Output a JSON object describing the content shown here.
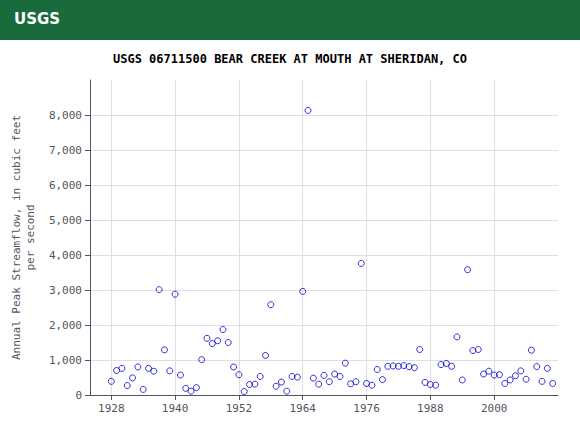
{
  "chart_data": {
    "type": "scatter",
    "title": "USGS 06711500 BEAR CREEK AT MOUTH AT SHERIDAN, CO",
    "annotations": [
      "USGS"
    ],
    "ylabel": "Annual Peak Streamflow, in cubic feet\nper second",
    "marker": "open_circle",
    "color": "#0000cc",
    "grid": true,
    "xlim": [
      1924,
      2012
    ],
    "xticks": [
      1928,
      1940,
      1952,
      1964,
      1976,
      1988,
      2000
    ],
    "ylim": [
      0,
      9000
    ],
    "yticks": [
      0,
      {
        "value": 1000,
        "label": "1,000"
      },
      {
        "value": 2000,
        "label": "2,000"
      },
      {
        "value": 3000,
        "label": "3,000"
      },
      {
        "value": 4000,
        "label": "4,000"
      },
      {
        "value": 5000,
        "label": "5,000"
      },
      {
        "value": 6000,
        "label": "6,000"
      },
      {
        "value": 7000,
        "label": "7,000"
      },
      {
        "value": 8000,
        "label": "8,000"
      }
    ],
    "x": [
      1928,
      1929,
      1930,
      1931,
      1932,
      1933,
      1934,
      1935,
      1936,
      1937,
      1938,
      1939,
      1940,
      1941,
      1942,
      1943,
      1944,
      1945,
      1946,
      1947,
      1948,
      1949,
      1950,
      1951,
      1952,
      1953,
      1954,
      1955,
      1956,
      1957,
      1958,
      1959,
      1960,
      1961,
      1962,
      1963,
      1964,
      1965,
      1966,
      1967,
      1968,
      1969,
      1970,
      1971,
      1972,
      1973,
      1974,
      1975,
      1976,
      1977,
      1978,
      1979,
      1980,
      1981,
      1982,
      1983,
      1984,
      1985,
      1986,
      1987,
      1988,
      1989,
      1990,
      1991,
      1992,
      1993,
      1994,
      1995,
      1996,
      1997,
      1998,
      1999,
      2000,
      2001,
      2002,
      2003,
      2004,
      2005,
      2006,
      2007,
      2008,
      2009,
      2010,
      2011
    ],
    "values": [
      390,
      700,
      760,
      270,
      490,
      800,
      160,
      760,
      680,
      3010,
      1290,
      690,
      2880,
      570,
      190,
      110,
      210,
      1010,
      1620,
      1470,
      1550,
      1870,
      1500,
      800,
      580,
      100,
      300,
      310,
      530,
      1130,
      2580,
      250,
      370,
      110,
      530,
      510,
      2960,
      8130,
      480,
      310,
      560,
      380,
      600,
      530,
      910,
      320,
      380,
      3760,
      330,
      280,
      730,
      440,
      820,
      830,
      820,
      840,
      810,
      780,
      1300,
      360,
      300,
      280,
      870,
      900,
      820,
      1660,
      430,
      3580,
      1270,
      1300,
      600,
      680,
      570,
      580,
      330,
      430,
      550,
      690,
      450,
      1280,
      810,
      390,
      760,
      330
    ]
  }
}
